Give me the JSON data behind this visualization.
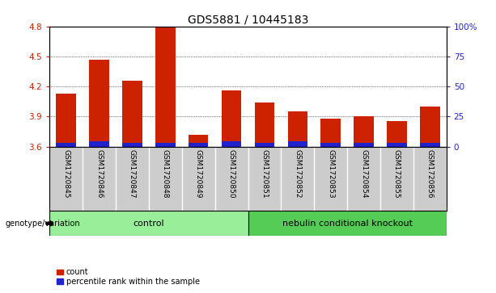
{
  "title": "GDS5881 / 10445183",
  "samples": [
    "GSM1720845",
    "GSM1720846",
    "GSM1720847",
    "GSM1720848",
    "GSM1720849",
    "GSM1720850",
    "GSM1720851",
    "GSM1720852",
    "GSM1720853",
    "GSM1720854",
    "GSM1720855",
    "GSM1720856"
  ],
  "red_values": [
    4.13,
    4.47,
    4.26,
    4.79,
    3.72,
    4.16,
    4.04,
    3.95,
    3.88,
    3.9,
    3.85,
    4.0
  ],
  "blue_values": [
    0.04,
    0.05,
    0.04,
    0.04,
    0.04,
    0.05,
    0.04,
    0.05,
    0.04,
    0.04,
    0.04,
    0.04
  ],
  "y_min": 3.6,
  "y_max": 4.8,
  "y_ticks": [
    3.6,
    3.9,
    4.2,
    4.5,
    4.8
  ],
  "y2_ticks": [
    0,
    25,
    50,
    75,
    100
  ],
  "y2_tick_labels": [
    "0",
    "25",
    "50",
    "75",
    "100%"
  ],
  "bar_width": 0.6,
  "bar_color_red": "#cc2200",
  "bar_color_blue": "#2222cc",
  "background_color": "#ffffff",
  "plot_bg_color": "#ffffff",
  "tick_label_area_color": "#cccccc",
  "group1_label": "control",
  "group2_label": "nebulin conditional knockout",
  "group1_color": "#99ee99",
  "group2_color": "#55cc55",
  "group1_samples": [
    0,
    1,
    2,
    3,
    4,
    5
  ],
  "group2_samples": [
    6,
    7,
    8,
    9,
    10,
    11
  ],
  "genotype_label": "genotype/variation",
  "legend_count": "count",
  "legend_percentile": "percentile rank within the sample",
  "title_fontsize": 10,
  "axis_fontsize": 7.5,
  "label_fontsize": 8,
  "sample_fontsize": 6.5
}
